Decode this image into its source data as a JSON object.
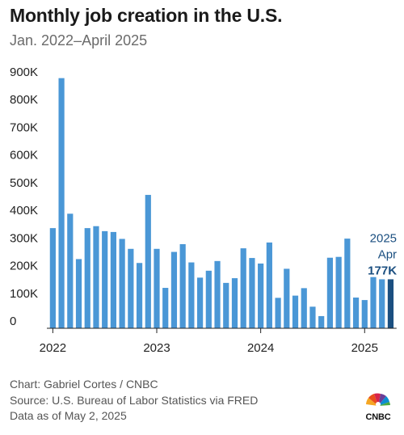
{
  "header": {
    "title": "Monthly job creation in the U.S.",
    "subtitle": "Jan. 2022–April 2025"
  },
  "footer": {
    "credit": "Chart: Gabriel Cortes / CNBC",
    "source": "Source: U.S. Bureau of Labor Statistics via FRED",
    "as_of": "Data as of May 2, 2025"
  },
  "logo": {
    "text": "CNBC",
    "icon": "peacock-logo-icon"
  },
  "chart_data": {
    "type": "bar",
    "title": "Monthly job creation in the U.S.",
    "subtitle": "Jan. 2022–April 2025",
    "xlabel": "",
    "ylabel": "",
    "ylim": [
      0,
      900000
    ],
    "yticks": [
      0,
      100000,
      200000,
      300000,
      400000,
      500000,
      600000,
      700000,
      800000,
      900000
    ],
    "ytick_labels": [
      "0",
      "100K",
      "200K",
      "300K",
      "400K",
      "500K",
      "600K",
      "700K",
      "800K",
      "900K"
    ],
    "xtick_labels": [
      {
        "label": "2022",
        "index": 0
      },
      {
        "label": "2023",
        "index": 12
      },
      {
        "label": "2024",
        "index": 24
      },
      {
        "label": "2025",
        "index": 36
      }
    ],
    "grid": false,
    "colors": {
      "bar": "#4a97d6",
      "highlight": "#1b4f80",
      "annotation": "#1b4f80",
      "axis": "#222222"
    },
    "annotation": {
      "index": 39,
      "year": "2025",
      "month": "Apr",
      "value": "177K"
    },
    "categories": [
      "2022-01",
      "2022-02",
      "2022-03",
      "2022-04",
      "2022-05",
      "2022-06",
      "2022-07",
      "2022-08",
      "2022-09",
      "2022-10",
      "2022-11",
      "2022-12",
      "2023-01",
      "2023-02",
      "2023-03",
      "2023-04",
      "2023-05",
      "2023-06",
      "2023-07",
      "2023-08",
      "2023-09",
      "2023-10",
      "2023-11",
      "2023-12",
      "2024-01",
      "2024-02",
      "2024-03",
      "2024-04",
      "2024-05",
      "2024-06",
      "2024-07",
      "2024-08",
      "2024-09",
      "2024-10",
      "2024-11",
      "2024-12",
      "2025-01",
      "2025-02",
      "2025-03",
      "2025-04"
    ],
    "values": [
      362000,
      904000,
      414000,
      250000,
      362000,
      369000,
      351000,
      348000,
      323000,
      287000,
      236000,
      482000,
      287000,
      146000,
      276000,
      304000,
      238000,
      183000,
      208000,
      243000,
      164000,
      181000,
      289000,
      254000,
      234000,
      310000,
      110000,
      215000,
      118000,
      145000,
      78000,
      44000,
      255000,
      258000,
      324000,
      111000,
      102000,
      185000,
      177000,
      177000
    ]
  }
}
